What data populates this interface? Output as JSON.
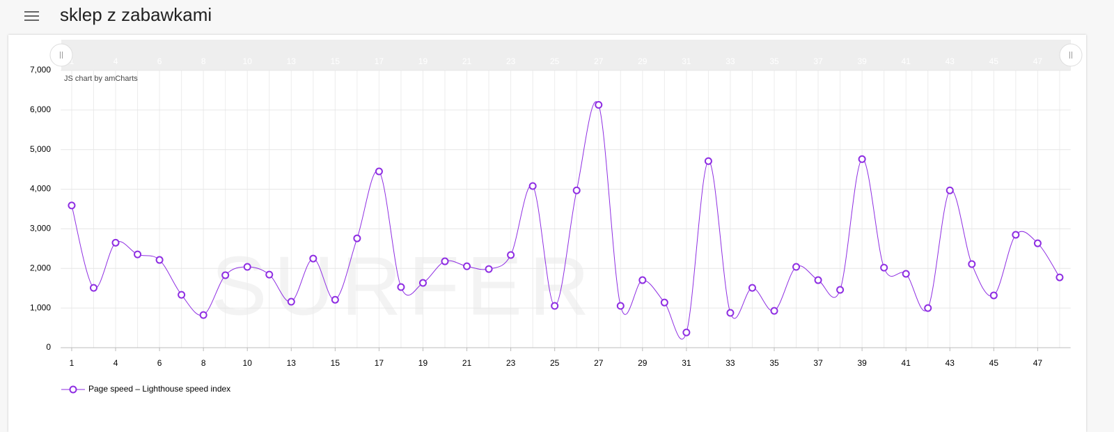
{
  "header": {
    "title": "sklep z zabawkami"
  },
  "chart_data": {
    "type": "line",
    "credit": "JS chart by amCharts",
    "watermark": "SURFER",
    "categories": [
      "1",
      null,
      "4",
      null,
      "6",
      null,
      "8",
      null,
      "10",
      null,
      "13",
      null,
      "15",
      null,
      "17",
      null,
      "19",
      null,
      "21",
      null,
      "23",
      null,
      "25",
      null,
      "27",
      null,
      "29",
      null,
      "31",
      null,
      "33",
      null,
      "35",
      null,
      "37",
      null,
      "39",
      null,
      "41",
      null,
      "43",
      null,
      "45",
      null,
      "47",
      null
    ],
    "series": [
      {
        "name": "Page speed – Lighthouse speed index",
        "color": "#8e2de2",
        "values": [
          3590,
          1510,
          2650,
          2355,
          2215,
          1335,
          825,
          1830,
          2040,
          1845,
          1160,
          2250,
          1210,
          2760,
          4450,
          1530,
          1635,
          2180,
          2055,
          1985,
          2340,
          4080,
          1055,
          3970,
          6130,
          1055,
          1705,
          1140,
          385,
          4710,
          880,
          1510,
          930,
          2040,
          1705,
          1460,
          4760,
          2020,
          1865,
          1000,
          3970,
          2110,
          1320,
          2850,
          2635,
          1775
        ]
      }
    ],
    "ylim": [
      0,
      7000
    ],
    "yticks": [
      0,
      {
        "value": 1000,
        "label": "1,000"
      },
      {
        "value": 2000,
        "label": "2,000"
      },
      {
        "value": 3000,
        "label": "3,000"
      },
      {
        "value": 4000,
        "label": "4,000"
      },
      {
        "value": 5000,
        "label": "5,000"
      },
      {
        "value": 6000,
        "label": "6,000"
      },
      {
        "value": 7000,
        "label": "7,000"
      }
    ],
    "grid": true,
    "legend": "bottom-left"
  }
}
